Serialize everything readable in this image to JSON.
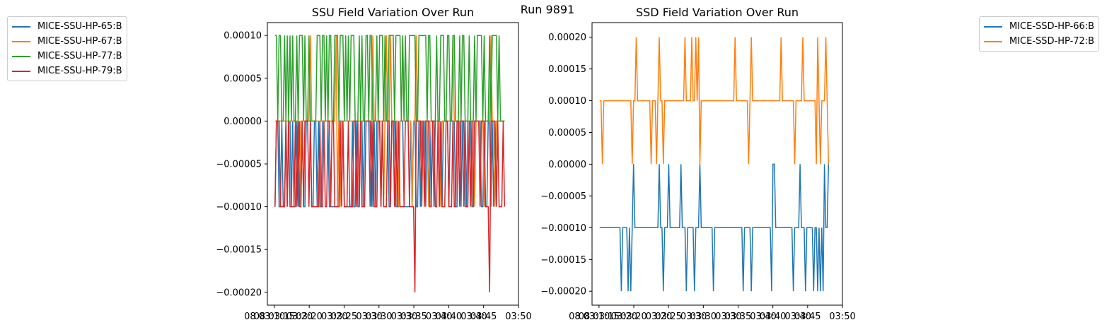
{
  "suptitle": "Run 9891",
  "chart_data": [
    {
      "type": "line",
      "title": "SSU Field Variation Over Run",
      "xlabel": "",
      "ylabel": "",
      "ylim": [
        -0.000215,
        0.000115
      ],
      "yticks": [
        "0.00010",
        "0.00005",
        "0.00000",
        "−0.00005",
        "−0.00010",
        "−0.00015",
        "−0.00020"
      ],
      "ytick_values": [
        0.0001,
        5e-05,
        0,
        -5e-05,
        -0.0001,
        -0.00015,
        -0.0002
      ],
      "xticks": [
        "08 03:15",
        "03:20",
        "03:25",
        "03:30",
        "03:35",
        "03:40",
        "03:45",
        "03:50"
      ],
      "xticks_overlap": [
        "08 03:10",
        "03:20",
        "03:20",
        "03:30",
        "03:30",
        "03:40",
        "03:40"
      ],
      "x_range_minutes": [
        0,
        36
      ],
      "x_units": "minutes after 03:14",
      "legend_position": "upper-left-outside",
      "series": [
        {
          "name": "MICE-SSU-HP-65:B",
          "color": "#1f77b4",
          "pattern": "ssu65"
        },
        {
          "name": "MICE-SSU-HP-67:B",
          "color": "#ff7f0e",
          "pattern": "ssu67"
        },
        {
          "name": "MICE-SSU-HP-77:B",
          "color": "#2ca02c",
          "pattern": "ssu77"
        },
        {
          "name": "MICE-SSU-HP-79:B",
          "color": "#d62728",
          "pattern": "ssu79"
        }
      ]
    },
    {
      "type": "line",
      "title": "SSD Field Variation Over Run",
      "xlabel": "",
      "ylabel": "",
      "ylim": [
        -0.000222,
        0.000223
      ],
      "yticks": [
        "0.00020",
        "0.00015",
        "0.00010",
        "0.00005",
        "0.00000",
        "−0.00005",
        "−0.00010",
        "−0.00015",
        "−0.00020"
      ],
      "ytick_values": [
        0.0002,
        0.00015,
        0.0001,
        5e-05,
        0,
        -5e-05,
        -0.0001,
        -0.00015,
        -0.0002
      ],
      "xticks": [
        "08 03:15",
        "03:20",
        "03:25",
        "03:30",
        "03:35",
        "03:40",
        "03:45",
        "03:50"
      ],
      "xticks_overlap": [
        "08 03:10",
        "03:20",
        "03:20",
        "03:30",
        "03:30",
        "03:40",
        "03:40"
      ],
      "x_range_minutes": [
        0,
        36
      ],
      "legend_position": "upper-right-outside",
      "series": [
        {
          "name": "MICE-SSD-HP-66:B",
          "color": "#1f77b4",
          "pattern": "ssd66"
        },
        {
          "name": "MICE-SSD-HP-72:B",
          "color": "#ff7f0e",
          "pattern": "ssd72"
        }
      ]
    }
  ]
}
